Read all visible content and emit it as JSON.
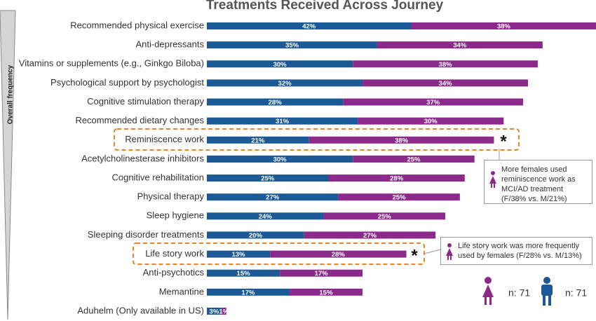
{
  "chart_data": {
    "type": "stacked-bar",
    "orientation": "horizontal",
    "title": "Treatments Received Across Journey",
    "axis_label": "Overall frequency",
    "categories": [
      "Recommended physical exercise",
      "Anti-depressants",
      "Vitamins or supplements (e.g., Ginkgo Biloba)",
      "Psychological support by psychologist",
      "Cognitive stimulation therapy",
      "Recommended dietary changes",
      "Reminiscence work",
      "Acetylcholinesterase inhibitors",
      "Cognitive rehabilitation",
      "Physical therapy",
      "Sleep hygiene",
      "Sleeping disorder treatments",
      "Life story work",
      "Anti-psychotics",
      "Memantine",
      "Aduhelm (Only available in US)"
    ],
    "series": [
      {
        "name": "n: 71",
        "color": "#1b5a96",
        "values": [
          42,
          35,
          30,
          32,
          28,
          31,
          21,
          30,
          25,
          27,
          24,
          20,
          13,
          15,
          17,
          3
        ],
        "value_labels": [
          "42%",
          "35%",
          "30%",
          "32%",
          "28%",
          "31%",
          "21%",
          "30%",
          "25%",
          "27%",
          "24%",
          "20%",
          "13%",
          "15%",
          "17%",
          "3%"
        ]
      },
      {
        "name": "n: 71",
        "color": "#8c2a8c",
        "values": [
          38,
          34,
          38,
          34,
          37,
          30,
          38,
          25,
          28,
          25,
          25,
          27,
          28,
          17,
          15,
          1
        ],
        "value_labels": [
          "38%",
          "34%",
          "38%",
          "34%",
          "37%",
          "30%",
          "38%",
          "25%",
          "28%",
          "25%",
          "25%",
          "27%",
          "28%",
          "17%",
          "15%",
          "1%"
        ]
      }
    ],
    "annotations": [
      "*",
      "*",
      "More females used reminiscence work as MCI/AD treatment (F/38% vs. M/21%)",
      "Life story work was more frequently used by females (F/28% vs. M/13%)"
    ]
  }
}
